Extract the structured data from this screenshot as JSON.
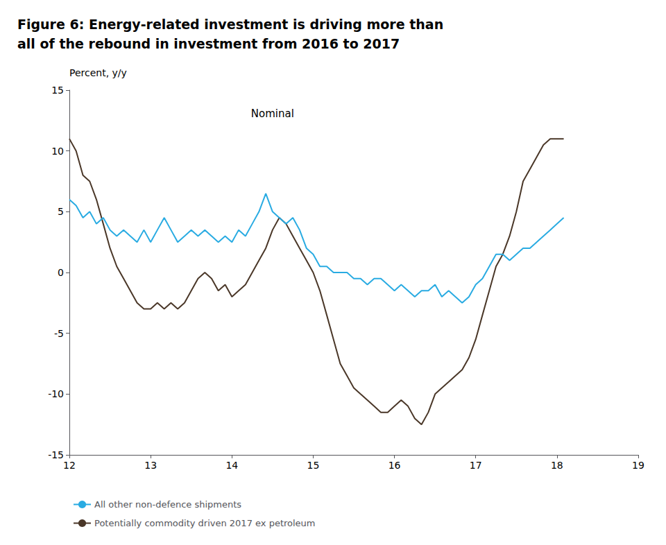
{
  "chart_data": {
    "type": "line",
    "title": "Figure 6: Energy-related investment is driving more than\nall of the rebound in investment from 2016 to 2017",
    "ylabel": "Percent, y/y",
    "annotation": {
      "text": "Nominal",
      "x": 14.5,
      "y": 13.5
    },
    "xlim": [
      12,
      19
    ],
    "xticks": [
      12,
      13,
      14,
      15,
      16,
      17,
      18,
      19
    ],
    "ylim": [
      -15,
      15
    ],
    "yticks": [
      -15,
      -10,
      -5,
      0,
      5,
      10,
      15
    ],
    "grid": false,
    "legend": "bottom",
    "x": [
      12.0,
      12.083,
      12.167,
      12.25,
      12.333,
      12.417,
      12.5,
      12.583,
      12.667,
      12.75,
      12.833,
      12.917,
      13.0,
      13.083,
      13.167,
      13.25,
      13.333,
      13.417,
      13.5,
      13.583,
      13.667,
      13.75,
      13.833,
      13.917,
      14.0,
      14.083,
      14.167,
      14.25,
      14.333,
      14.417,
      14.5,
      14.583,
      14.667,
      14.75,
      14.833,
      14.917,
      15.0,
      15.083,
      15.167,
      15.25,
      15.333,
      15.417,
      15.5,
      15.583,
      15.667,
      15.75,
      15.833,
      15.917,
      16.0,
      16.083,
      16.167,
      16.25,
      16.333,
      16.417,
      16.5,
      16.583,
      16.667,
      16.75,
      16.833,
      16.917,
      17.0,
      17.083,
      17.167,
      17.25,
      17.333,
      17.417,
      17.5,
      17.583,
      17.667,
      17.75,
      17.833,
      17.917,
      18.0,
      18.083
    ],
    "series": [
      {
        "name": "All other non-defence shipments",
        "color": "#29ABE2",
        "values": [
          6.0,
          5.5,
          4.5,
          5.0,
          4.0,
          4.5,
          3.5,
          3.0,
          3.5,
          3.0,
          2.5,
          3.5,
          2.5,
          3.5,
          4.5,
          3.5,
          2.5,
          3.0,
          3.5,
          3.0,
          3.5,
          3.0,
          2.5,
          3.0,
          2.5,
          3.5,
          3.0,
          4.0,
          5.0,
          6.5,
          5.0,
          4.5,
          4.0,
          4.5,
          3.5,
          2.0,
          1.5,
          0.5,
          0.5,
          0.0,
          0.0,
          0.0,
          -0.5,
          -0.5,
          -1.0,
          -0.5,
          -0.5,
          -1.0,
          -1.5,
          -1.0,
          -1.5,
          -2.0,
          -1.5,
          -1.5,
          -1.0,
          -2.0,
          -1.5,
          -2.0,
          -2.5,
          -2.0,
          -1.0,
          -0.5,
          0.5,
          1.5,
          1.5,
          1.0,
          1.5,
          2.0,
          2.0,
          2.5,
          3.0,
          3.5,
          4.0,
          4.5
        ]
      },
      {
        "name": "Potentially commodity driven 2017 ex petroleum",
        "color": "#4A3728",
        "values": [
          11.0,
          10.0,
          8.0,
          7.5,
          6.0,
          4.0,
          2.0,
          0.5,
          -0.5,
          -1.5,
          -2.5,
          -3.0,
          -3.0,
          -2.5,
          -3.0,
          -2.5,
          -3.0,
          -2.5,
          -1.5,
          -0.5,
          0.0,
          -0.5,
          -1.5,
          -1.0,
          -2.0,
          -1.5,
          -1.0,
          0.0,
          1.0,
          2.0,
          3.5,
          4.5,
          4.0,
          3.0,
          2.0,
          1.0,
          0.0,
          -1.5,
          -3.5,
          -5.5,
          -7.5,
          -8.5,
          -9.5,
          -10.0,
          -10.5,
          -11.0,
          -11.5,
          -11.5,
          -11.0,
          -10.5,
          -11.0,
          -12.0,
          -12.5,
          -11.5,
          -10.0,
          -9.5,
          -9.0,
          -8.5,
          -8.0,
          -7.0,
          -5.5,
          -3.5,
          -1.5,
          0.5,
          1.5,
          3.0,
          5.0,
          7.5,
          8.5,
          9.5,
          10.5,
          11.0,
          11.0,
          11.0
        ]
      }
    ]
  }
}
